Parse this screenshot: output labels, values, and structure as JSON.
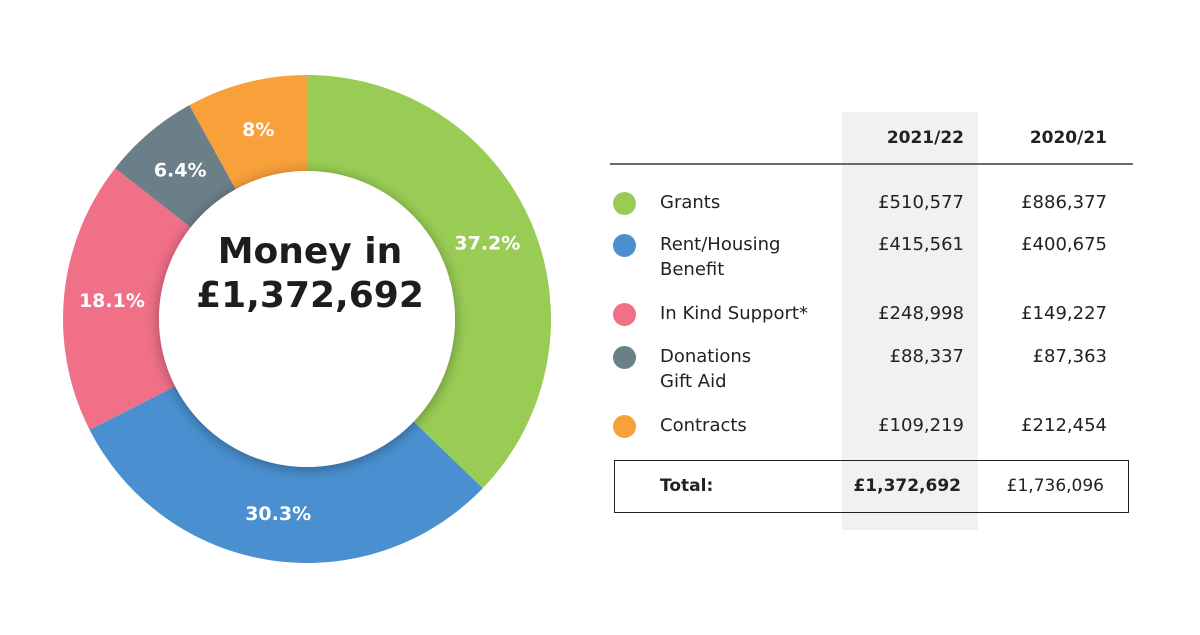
{
  "center": {
    "title": "Money in",
    "total": "£1,372,692"
  },
  "table": {
    "headers": [
      "2021/22",
      "2020/21"
    ],
    "rows": [
      {
        "label": "Grants",
        "v2122": "£510,577",
        "v2021": "£886,377",
        "color": "#99cc55"
      },
      {
        "label": "Rent/Housing Benefit",
        "v2122": "£415,561",
        "v2021": "£400,675",
        "color": "#4a90d0"
      },
      {
        "label": "In Kind Support*",
        "v2122": "£248,998",
        "v2021": "£149,227",
        "color": "#f07088"
      },
      {
        "label": "Donations Gift Aid",
        "v2122": "£88,337",
        "v2021": "£87,363",
        "color": "#6b7f88"
      },
      {
        "label": "Contracts",
        "v2122": "£109,219",
        "v2021": "£212,454",
        "color": "#f8a03a"
      }
    ],
    "total": {
      "label": "Total:",
      "v2122": "£1,372,692",
      "v2021": "£1,736,096"
    }
  },
  "chart_data": {
    "type": "pie",
    "categories": [
      "Grants",
      "Rent/Housing Benefit",
      "In Kind Support*",
      "Donations Gift Aid",
      "Contracts"
    ],
    "values": [
      37.2,
      30.3,
      18.1,
      6.4,
      8
    ],
    "labels": [
      "37.2%",
      "30.3%",
      "18.1%",
      "6.4%",
      "8%"
    ],
    "colors": [
      "#99cc55",
      "#4a90d0",
      "#f07088",
      "#6b7f88",
      "#f8a03a"
    ],
    "title": "Money in",
    "subtitle": "£1,372,692",
    "hole": true
  }
}
